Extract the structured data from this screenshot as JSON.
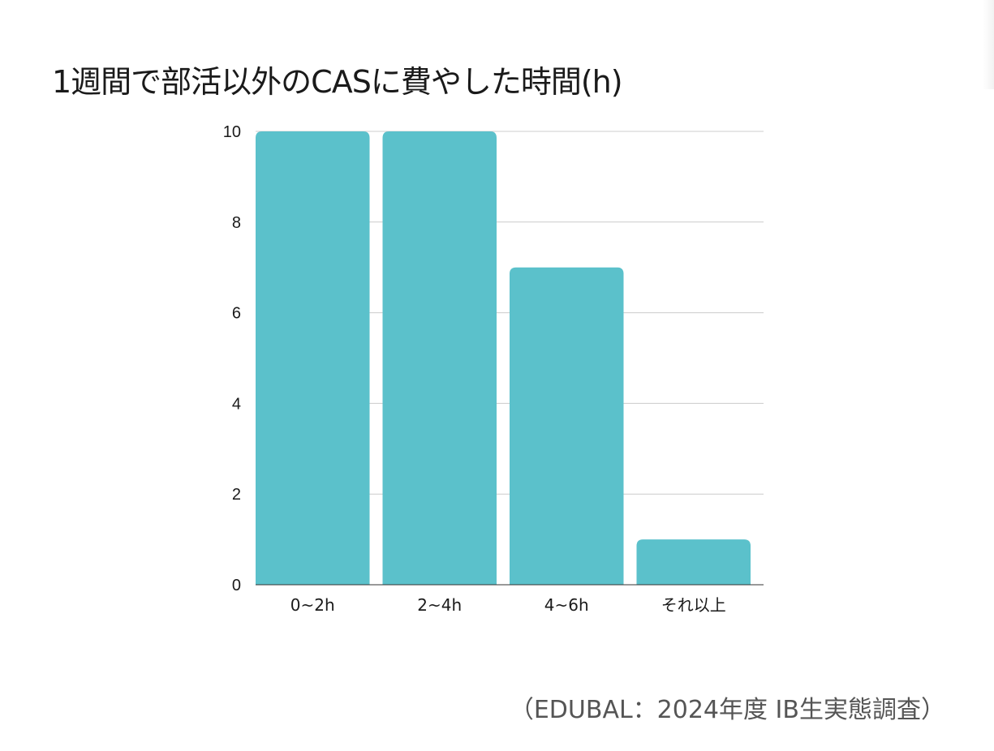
{
  "title": "1週間で部活以外のCASに費やした時間(h)",
  "source": "（EDUBAL：2024年度 IB生実態調査）",
  "colors": {
    "bar": "#5bc1cb",
    "grid": "#cccccc",
    "axis": "#333333",
    "text": "#1a1a1a"
  },
  "chart_data": {
    "type": "bar",
    "title": "1週間で部活以外のCASに費やした時間(h)",
    "categories": [
      "0~2h",
      "2~4h",
      "4~6h",
      "それ以上"
    ],
    "values": [
      10,
      10,
      7,
      1
    ],
    "xlabel": "",
    "ylabel": "",
    "ylim": [
      0,
      10
    ],
    "yticks": [
      0,
      2,
      4,
      6,
      8,
      10
    ],
    "grid": true,
    "legend": "none"
  }
}
